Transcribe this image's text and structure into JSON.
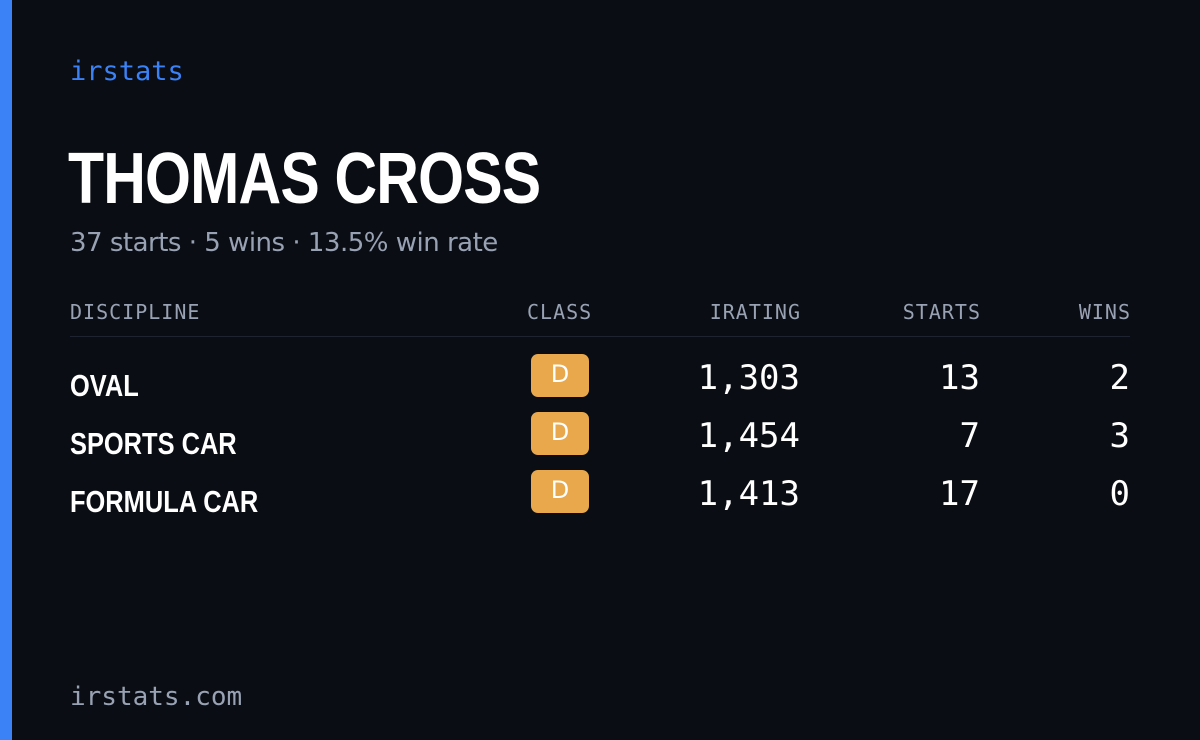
{
  "brand": "irstats",
  "driver": {
    "name": "THOMAS CROSS",
    "summary": "37 starts · 5 wins · 13.5% win rate"
  },
  "table": {
    "headers": {
      "discipline": "DISCIPLINE",
      "class": "CLASS",
      "irating": "IRATING",
      "starts": "STARTS",
      "wins": "WINS"
    },
    "rows": [
      {
        "discipline": "OVAL",
        "class": "D",
        "irating": "1,303",
        "starts": "13",
        "wins": "2"
      },
      {
        "discipline": "SPORTS CAR",
        "class": "D",
        "irating": "1,454",
        "starts": "7",
        "wins": "3"
      },
      {
        "discipline": "FORMULA CAR",
        "class": "D",
        "irating": "1,413",
        "starts": "17",
        "wins": "0"
      }
    ]
  },
  "footer": "irstats.com",
  "colors": {
    "accent": "#3b82f6",
    "background": "#0a0d14",
    "class_d": "#e8a84b",
    "muted_text": "#98a2b3"
  }
}
